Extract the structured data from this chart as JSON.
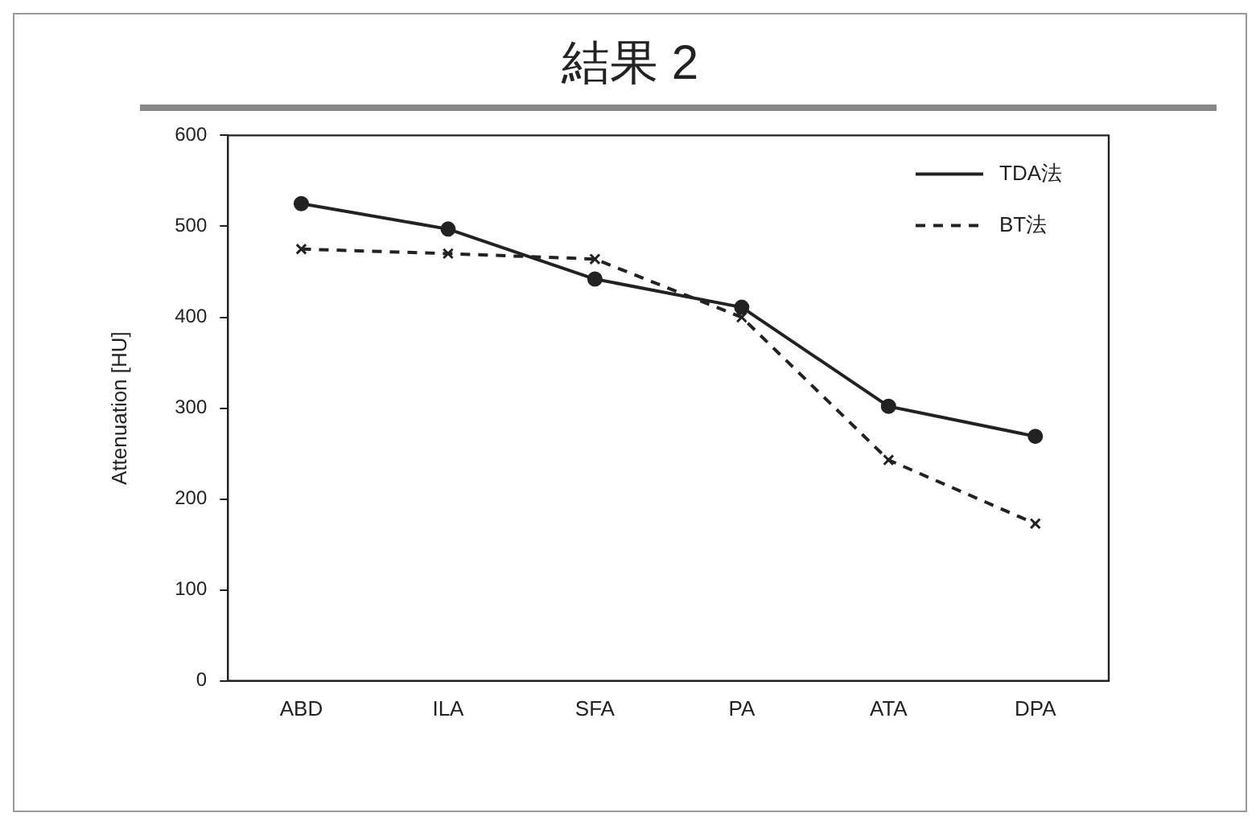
{
  "chart_data": {
    "type": "line",
    "title": "結果 2",
    "ylabel": "Attenuation [HU]",
    "categories": [
      "ABD",
      "ILA",
      "SFA",
      "PA",
      "ATA",
      "DPA"
    ],
    "series": [
      {
        "name": "TDA法",
        "color": "#222222",
        "values": [
          525,
          497,
          442,
          411,
          302,
          269
        ],
        "marker": "circle",
        "line_style": "solid"
      },
      {
        "name": "BT法",
        "color": "#222222",
        "values": [
          475,
          470,
          464,
          400,
          243,
          173
        ],
        "marker": "cross",
        "line_style": "dashed"
      }
    ],
    "ylim": [
      0,
      600
    ],
    "yticks": [
      0,
      100,
      200,
      300,
      400,
      500,
      600
    ],
    "grid": false,
    "legend": "top right"
  }
}
